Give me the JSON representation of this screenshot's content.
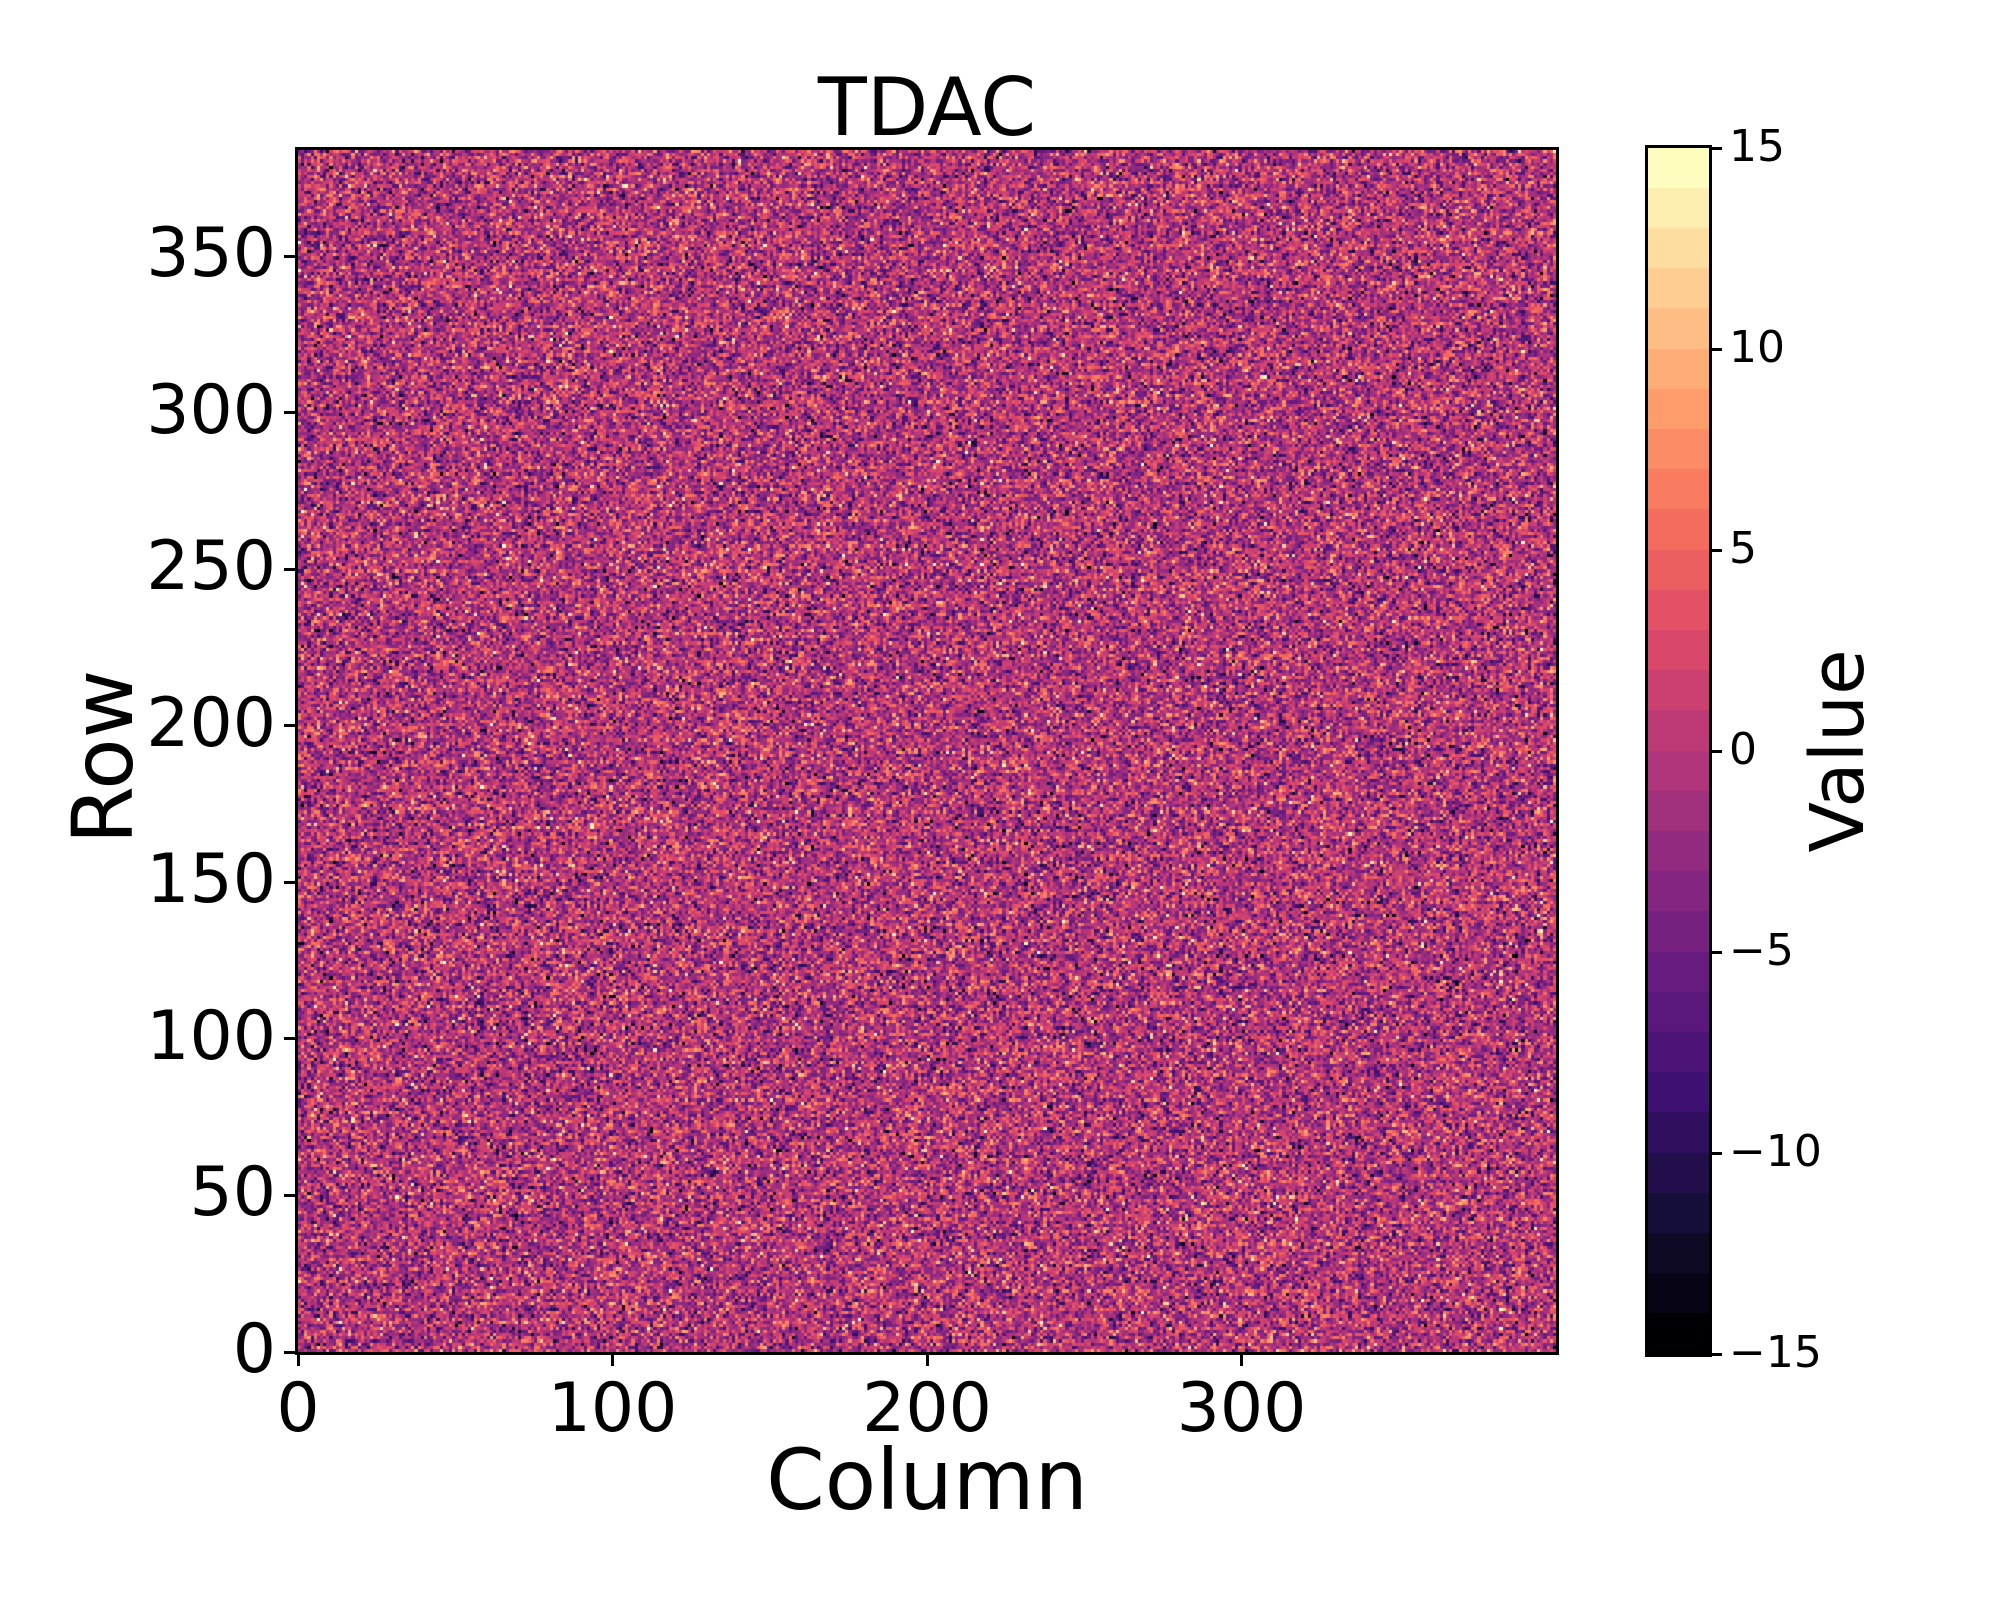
{
  "figure": {
    "title": "TDAC",
    "background_color": "#ffffff",
    "text_color": "#000000"
  },
  "axes": {
    "xlabel": "Column",
    "ylabel": "Row",
    "x_tick_labels": [
      "0",
      "100",
      "200",
      "300"
    ],
    "x_tick_values": [
      0,
      100,
      200,
      300
    ],
    "y_tick_labels": [
      "0",
      "50",
      "100",
      "150",
      "200",
      "250",
      "300",
      "350"
    ],
    "y_tick_values": [
      0,
      50,
      100,
      150,
      200,
      250,
      300,
      350
    ]
  },
  "colorbar": {
    "label": "Value",
    "tick_labels": [
      "15",
      "10",
      "5",
      "0",
      "−5",
      "−10",
      "−15"
    ],
    "tick_values": [
      15,
      10,
      5,
      0,
      -5,
      -10,
      -15
    ],
    "vmin": -15,
    "vmax": 15,
    "n_levels": 30
  },
  "chart_data": {
    "type": "heatmap",
    "title": "TDAC",
    "xlabel": "Column",
    "ylabel": "Row",
    "colorbar_label": "Value",
    "x_range": [
      0,
      400
    ],
    "y_range": [
      0,
      384
    ],
    "value_range": [
      -15,
      15
    ],
    "grid_cols": 400,
    "grid_rows": 384,
    "values_summary": "400x384 per-pixel TDAC trim values: i.i.d. random integer noise, approximately Gaussian with mean -0.3 and sd 4.8, clamped to [-15, 15]; mostly purple/magenta midtones with sparse bright-orange/yellow high values and near-black low values",
    "noise_model": {
      "mean": -0.3,
      "std": 4.8,
      "seed": 42
    },
    "colormap": {
      "name": "magma",
      "stops": [
        "#000004",
        "#140e36",
        "#3b0f70",
        "#641a80",
        "#8c2981",
        "#b73779",
        "#de4968",
        "#f7705c",
        "#fe9f6d",
        "#fecf92",
        "#fcfdbf"
      ]
    },
    "legend_position": "right-colorbar",
    "grid": false
  }
}
